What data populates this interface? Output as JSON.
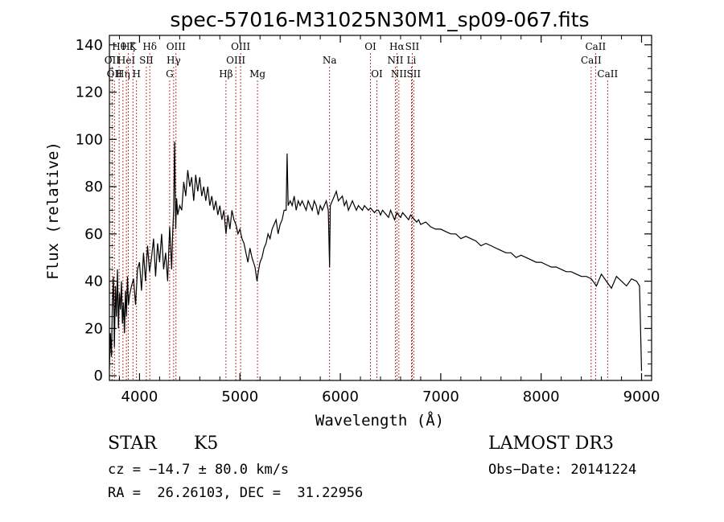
{
  "chart_data": {
    "type": "line",
    "title": "spec-57016-M31025N30M1_sp09-067.fits",
    "xlabel": "Wavelength (Å)",
    "ylabel": "Flux (relative)",
    "xlim": [
      3700,
      9100
    ],
    "ylim": [
      -2,
      144
    ],
    "xticks": [
      4000,
      5000,
      6000,
      7000,
      8000,
      9000
    ],
    "yticks": [
      0,
      20,
      40,
      60,
      80,
      100,
      120,
      140
    ],
    "series": [
      {
        "name": "flux",
        "x": [
          3700,
          3710,
          3720,
          3730,
          3740,
          3750,
          3760,
          3770,
          3780,
          3790,
          3800,
          3810,
          3820,
          3830,
          3840,
          3850,
          3860,
          3870,
          3880,
          3890,
          3900,
          3920,
          3940,
          3960,
          3980,
          4000,
          4020,
          4040,
          4060,
          4080,
          4100,
          4120,
          4140,
          4160,
          4180,
          4200,
          4220,
          4240,
          4260,
          4280,
          4300,
          4310,
          4320,
          4330,
          4340,
          4350,
          4360,
          4370,
          4380,
          4400,
          4420,
          4440,
          4460,
          4480,
          4500,
          4520,
          4540,
          4560,
          4580,
          4600,
          4620,
          4640,
          4660,
          4680,
          4700,
          4720,
          4740,
          4760,
          4780,
          4800,
          4820,
          4840,
          4861,
          4880,
          4900,
          4920,
          4940,
          4960,
          4980,
          5000,
          5020,
          5040,
          5060,
          5080,
          5100,
          5120,
          5150,
          5170,
          5183,
          5200,
          5220,
          5240,
          5260,
          5280,
          5300,
          5320,
          5340,
          5360,
          5380,
          5400,
          5420,
          5440,
          5460,
          5470,
          5480,
          5500,
          5520,
          5540,
          5560,
          5580,
          5600,
          5620,
          5640,
          5660,
          5680,
          5700,
          5720,
          5740,
          5760,
          5780,
          5800,
          5820,
          5840,
          5860,
          5880,
          5893,
          5900,
          5920,
          5940,
          5960,
          5980,
          6000,
          6020,
          6040,
          6060,
          6080,
          6100,
          6120,
          6140,
          6160,
          6180,
          6200,
          6220,
          6240,
          6260,
          6280,
          6300,
          6320,
          6340,
          6360,
          6380,
          6400,
          6420,
          6440,
          6460,
          6480,
          6500,
          6520,
          6540,
          6563,
          6580,
          6600,
          6620,
          6640,
          6660,
          6680,
          6700,
          6720,
          6740,
          6760,
          6780,
          6800,
          6850,
          6900,
          6950,
          7000,
          7050,
          7100,
          7150,
          7200,
          7250,
          7300,
          7350,
          7400,
          7450,
          7500,
          7550,
          7600,
          7650,
          7700,
          7750,
          7800,
          7850,
          7900,
          7950,
          8000,
          8050,
          8100,
          8150,
          8200,
          8250,
          8300,
          8350,
          8400,
          8450,
          8500,
          8550,
          8600,
          8650,
          8700,
          8750,
          8800,
          8850,
          8900,
          8950,
          8980,
          9000
        ],
        "y": [
          3,
          18,
          8,
          30,
          42,
          12,
          38,
          25,
          45,
          20,
          35,
          28,
          40,
          22,
          31,
          18,
          36,
          25,
          42,
          30,
          34,
          38,
          41,
          30,
          45,
          48,
          36,
          52,
          40,
          55,
          44,
          50,
          58,
          42,
          56,
          48,
          60,
          45,
          52,
          40,
          63,
          55,
          45,
          60,
          70,
          99,
          62,
          75,
          68,
          72,
          70,
          82,
          76,
          87,
          80,
          84,
          74,
          85,
          78,
          84,
          76,
          80,
          74,
          80,
          72,
          76,
          70,
          74,
          68,
          72,
          66,
          70,
          60,
          68,
          62,
          70,
          66,
          64,
          60,
          62,
          58,
          56,
          52,
          48,
          54,
          50,
          46,
          40,
          44,
          48,
          50,
          54,
          56,
          60,
          58,
          62,
          64,
          66,
          60,
          64,
          66,
          70,
          70,
          94,
          72,
          74,
          72,
          76,
          70,
          74,
          72,
          74,
          72,
          70,
          74,
          72,
          70,
          74,
          72,
          68,
          72,
          70,
          72,
          74,
          70,
          46,
          72,
          74,
          76,
          78,
          74,
          75,
          76,
          72,
          74,
          70,
          72,
          74,
          72,
          70,
          72,
          71,
          70,
          72,
          71,
          70,
          71,
          70,
          69,
          70,
          70,
          68,
          70,
          69,
          68,
          67,
          70,
          68,
          66,
          69,
          68,
          67,
          69,
          68,
          67,
          66,
          68,
          67,
          66,
          65,
          66,
          64,
          65,
          63,
          62,
          62,
          61,
          60,
          60,
          58,
          59,
          58,
          57,
          55,
          56,
          55,
          54,
          53,
          52,
          52,
          50,
          51,
          50,
          49,
          48,
          48,
          47,
          46,
          46,
          45,
          44,
          44,
          43,
          42,
          42,
          41,
          38,
          43,
          40,
          37,
          42,
          40,
          38,
          41,
          40,
          38,
          2
        ]
      }
    ],
    "emission_lines": [
      {
        "wavelength": 3727,
        "label": "OII",
        "row": 2
      },
      {
        "wavelength": 3750,
        "label": "OII",
        "row": 3
      },
      {
        "wavelength": 3797,
        "label": "Hθ",
        "row": 1
      },
      {
        "wavelength": 3835,
        "label": "Hη",
        "row": 3
      },
      {
        "wavelength": 3869,
        "label": "HeI",
        "row": 2
      },
      {
        "wavelength": 3889,
        "label": "Hζ",
        "row": 1
      },
      {
        "wavelength": 3934,
        "label": "K",
        "row": 1
      },
      {
        "wavelength": 3970,
        "label": "H",
        "row": 3
      },
      {
        "wavelength": 4068,
        "label": "SII",
        "row": 2
      },
      {
        "wavelength": 4102,
        "label": "Hδ",
        "row": 1
      },
      {
        "wavelength": 4300,
        "label": "G",
        "row": 3
      },
      {
        "wavelength": 4340,
        "label": "Hγ",
        "row": 2
      },
      {
        "wavelength": 4363,
        "label": "OIII",
        "row": 1
      },
      {
        "wavelength": 4861,
        "label": "Hβ",
        "row": 3
      },
      {
        "wavelength": 4959,
        "label": "OIII",
        "row": 2
      },
      {
        "wavelength": 5007,
        "label": "OIII",
        "row": 1
      },
      {
        "wavelength": 5175,
        "label": "Mg",
        "row": 3
      },
      {
        "wavelength": 5893,
        "label": "Na",
        "row": 2
      },
      {
        "wavelength": 6300,
        "label": "OI",
        "row": 1
      },
      {
        "wavelength": 6364,
        "label": "OI",
        "row": 3
      },
      {
        "wavelength": 6548,
        "label": "NII",
        "row": 2
      },
      {
        "wavelength": 6563,
        "label": "Hα",
        "row": 1
      },
      {
        "wavelength": 6583,
        "label": "NII",
        "row": 3
      },
      {
        "wavelength": 6708,
        "label": "Li",
        "row": 2
      },
      {
        "wavelength": 6716,
        "label": "SII",
        "row": 1
      },
      {
        "wavelength": 6731,
        "label": "SII",
        "row": 3
      },
      {
        "wavelength": 8498,
        "label": "CaII",
        "row": 2
      },
      {
        "wavelength": 8542,
        "label": "CaII",
        "row": 1
      },
      {
        "wavelength": 8662,
        "label": "CaII",
        "row": 3
      }
    ],
    "line_color": "#b22222"
  },
  "footer": {
    "object_class": "STAR",
    "subclass": "K5",
    "survey": "LAMOST DR3",
    "cz": "cz = −14.7 ± 80.0 km/s",
    "obs_date": "Obs−Date: 20141224",
    "coords": "RA =  26.26103, DEC =  31.22956"
  }
}
